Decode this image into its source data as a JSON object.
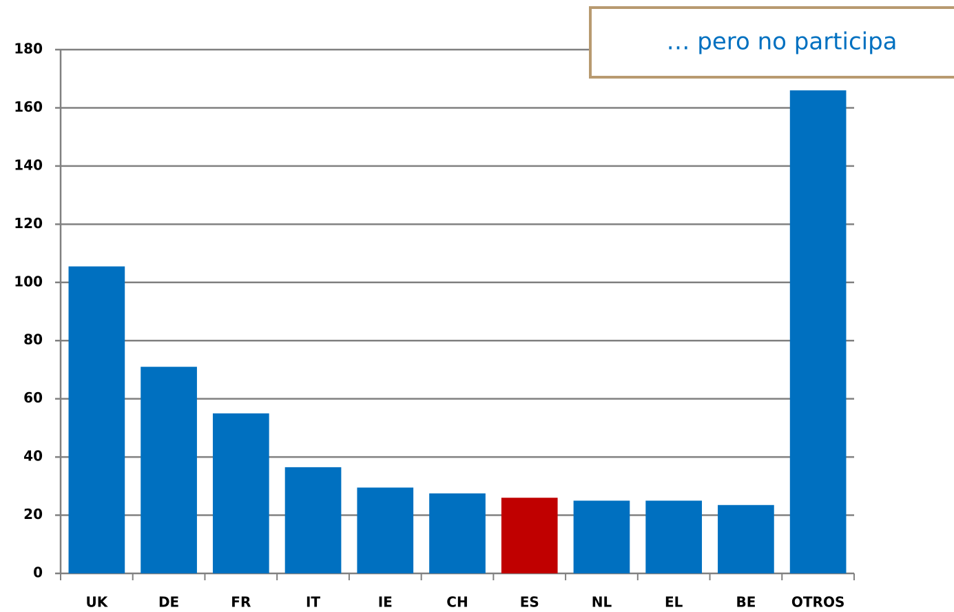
{
  "chart_data": {
    "type": "bar",
    "annotation": "… pero no participa",
    "categories": [
      "UK",
      "DE",
      "FR",
      "IT",
      "IE",
      "CH",
      "ES",
      "NL",
      "EL",
      "BE",
      "OTROS"
    ],
    "values": [
      105.5,
      71,
      55,
      36.5,
      29.5,
      27.5,
      26,
      25,
      25,
      23.5,
      166
    ],
    "colors": [
      "#0070c0",
      "#0070c0",
      "#0070c0",
      "#0070c0",
      "#0070c0",
      "#0070c0",
      "#c00000",
      "#0070c0",
      "#0070c0",
      "#0070c0",
      "#0070c0"
    ],
    "ylim": [
      0,
      180
    ],
    "yticks": [
      0,
      20,
      40,
      60,
      80,
      100,
      120,
      140,
      160,
      180
    ],
    "grid": true
  }
}
